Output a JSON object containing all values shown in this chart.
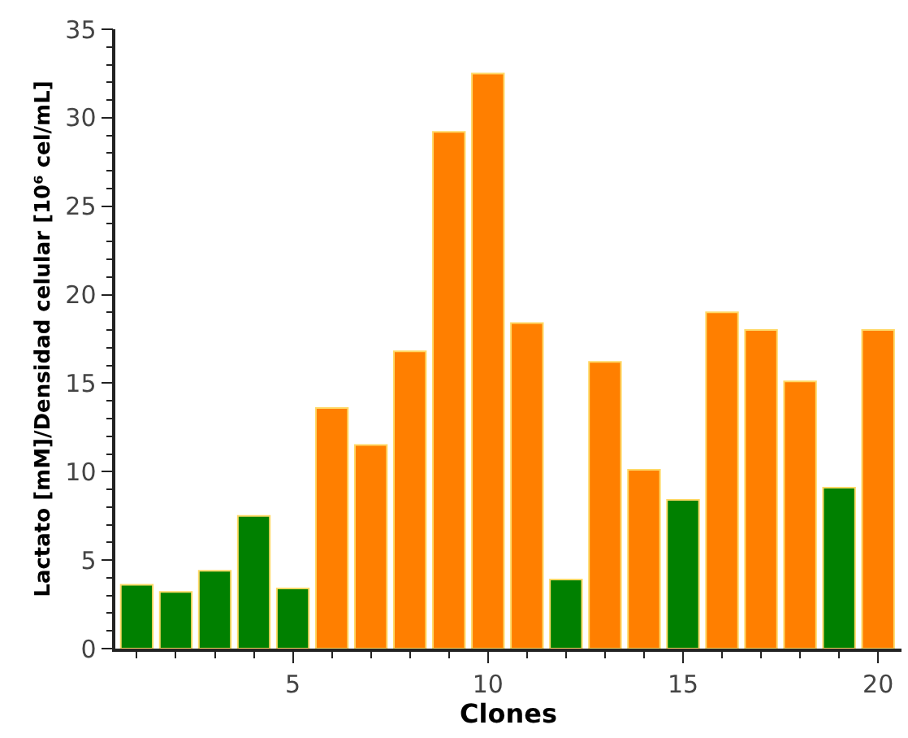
{
  "chart_data": {
    "type": "bar",
    "xlabel": "Clones",
    "ylabel": "Lactato [mM]/Densidad celular [10⁶ cel/mL]",
    "x": [
      1,
      2,
      3,
      4,
      5,
      6,
      7,
      8,
      9,
      10,
      11,
      12,
      13,
      14,
      15,
      16,
      17,
      18,
      19,
      20
    ],
    "values": [
      3.6,
      3.2,
      4.4,
      7.5,
      3.4,
      13.6,
      11.5,
      16.8,
      29.2,
      32.5,
      18.4,
      3.9,
      16.2,
      10.1,
      8.4,
      19.0,
      18.0,
      15.1,
      9.1,
      18.0
    ],
    "colors": [
      "#008000",
      "#008000",
      "#008000",
      "#008000",
      "#008000",
      "#ff7f00",
      "#ff7f00",
      "#ff7f00",
      "#ff7f00",
      "#ff7f00",
      "#ff7f00",
      "#008000",
      "#ff7f00",
      "#ff7f00",
      "#008000",
      "#ff7f00",
      "#ff7f00",
      "#ff7f00",
      "#008000",
      "#ff7f00"
    ],
    "xlim": [
      0.45,
      20.6
    ],
    "ylim": [
      0,
      35
    ],
    "xticks": [
      {
        "value": 1,
        "label": null
      },
      {
        "value": 2,
        "label": null
      },
      {
        "value": 3,
        "label": null
      },
      {
        "value": 4,
        "label": null
      },
      5,
      {
        "value": 6,
        "label": null
      },
      {
        "value": 7,
        "label": null
      },
      {
        "value": 8,
        "label": null
      },
      {
        "value": 9,
        "label": null
      },
      10,
      {
        "value": 11,
        "label": null
      },
      {
        "value": 12,
        "label": null
      },
      {
        "value": 13,
        "label": null
      },
      {
        "value": 14,
        "label": null
      },
      15,
      {
        "value": 16,
        "label": null
      },
      {
        "value": 17,
        "label": null
      },
      {
        "value": 18,
        "label": null
      },
      {
        "value": 19,
        "label": null
      },
      20
    ],
    "yticks": [
      0,
      {
        "value": 1,
        "label": null
      },
      {
        "value": 2,
        "label": null
      },
      {
        "value": 3,
        "label": null
      },
      {
        "value": 4,
        "label": null
      },
      5,
      {
        "value": 6,
        "label": null
      },
      {
        "value": 7,
        "label": null
      },
      {
        "value": 8,
        "label": null
      },
      {
        "value": 9,
        "label": null
      },
      10,
      {
        "value": 11,
        "label": null
      },
      {
        "value": 12,
        "label": null
      },
      {
        "value": 13,
        "label": null
      },
      {
        "value": 14,
        "label": null
      },
      15,
      {
        "value": 16,
        "label": null
      },
      {
        "value": 17,
        "label": null
      },
      {
        "value": 18,
        "label": null
      },
      {
        "value": 19,
        "label": null
      },
      20,
      {
        "value": 21,
        "label": null
      },
      {
        "value": 22,
        "label": null
      },
      {
        "value": 23,
        "label": null
      },
      {
        "value": 24,
        "label": null
      },
      25,
      {
        "value": 26,
        "label": null
      },
      {
        "value": 27,
        "label": null
      },
      {
        "value": 28,
        "label": null
      },
      {
        "value": 29,
        "label": null
      },
      30,
      {
        "value": 31,
        "label": null
      },
      {
        "value": 32,
        "label": null
      },
      {
        "value": 33,
        "label": null
      },
      {
        "value": 34,
        "label": null
      },
      35
    ]
  }
}
